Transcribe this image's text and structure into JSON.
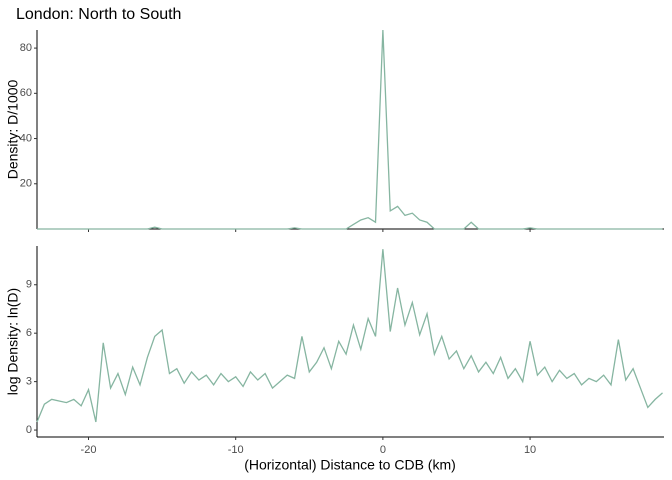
{
  "chart_data": [
    {
      "type": "line",
      "title": "London: North to South",
      "ylabel": "Density: D/1000",
      "x": [
        -23.5,
        -23,
        -22.5,
        -22,
        -21.5,
        -21,
        -20.5,
        -20,
        -19.5,
        -19,
        -18.5,
        -18,
        -17.5,
        -17,
        -16.5,
        -16,
        -15.5,
        -15,
        -14.5,
        -14,
        -13.5,
        -13,
        -12.5,
        -12,
        -11.5,
        -11,
        -10.5,
        -10,
        -9.5,
        -9,
        -8.5,
        -8,
        -7.5,
        -7,
        -6.5,
        -6,
        -5.5,
        -5,
        -4.5,
        -4,
        -3.5,
        -3,
        -2.5,
        -2,
        -1.5,
        -1,
        -0.5,
        0,
        0.5,
        1,
        1.5,
        2,
        2.5,
        3,
        3.5,
        4,
        4.5,
        5,
        5.5,
        6,
        6.5,
        7,
        7.5,
        8,
        8.5,
        9,
        9.5,
        10,
        10.5,
        11,
        11.5,
        12,
        12.5,
        13,
        13.5,
        14,
        14.5,
        15,
        15.5,
        16,
        16.5,
        17,
        17.5,
        18,
        18.5,
        19
      ],
      "series": [
        {
          "color": "#86b5a1",
          "values": [
            0,
            0,
            0,
            0,
            0,
            0,
            0,
            0,
            0,
            0,
            0,
            0,
            0,
            0,
            0,
            0,
            0.8,
            0,
            0,
            0,
            0,
            0,
            0,
            0,
            0,
            0,
            0,
            0,
            0,
            0,
            0,
            0,
            0,
            0,
            0,
            0.5,
            0,
            0,
            0,
            0,
            0,
            0,
            0,
            2,
            4,
            5,
            3,
            88,
            8,
            10,
            6,
            7,
            4,
            3,
            0,
            0,
            0,
            0,
            0,
            3,
            0,
            0,
            0,
            0,
            0,
            0,
            0,
            0.5,
            0,
            0,
            0,
            0,
            0,
            0,
            0,
            0,
            0,
            0,
            0,
            0,
            0,
            0,
            0,
            0,
            0,
            0
          ]
        }
      ],
      "xlim": [
        -23.5,
        19.1
      ],
      "ylim": [
        0,
        88
      ],
      "yticks": [
        20,
        40,
        60,
        80
      ]
    },
    {
      "type": "line",
      "ylabel": "log Density: ln(D)",
      "xlabel": "(Horizontal) Distance to CDB (km)",
      "x": [
        -23.5,
        -23,
        -22.5,
        -22,
        -21.5,
        -21,
        -20.5,
        -20,
        -19.5,
        -19,
        -18.5,
        -18,
        -17.5,
        -17,
        -16.5,
        -16,
        -15.5,
        -15,
        -14.5,
        -14,
        -13.5,
        -13,
        -12.5,
        -12,
        -11.5,
        -11,
        -10.5,
        -10,
        -9.5,
        -9,
        -8.5,
        -8,
        -7.5,
        -7,
        -6.5,
        -6,
        -5.5,
        -5,
        -4.5,
        -4,
        -3.5,
        -3,
        -2.5,
        -2,
        -1.5,
        -1,
        -0.5,
        0,
        0.5,
        1,
        1.5,
        2,
        2.5,
        3,
        3.5,
        4,
        4.5,
        5,
        5.5,
        6,
        6.5,
        7,
        7.5,
        8,
        8.5,
        9,
        9.5,
        10,
        10.5,
        11,
        11.5,
        12,
        12.5,
        13,
        13.5,
        14,
        14.5,
        15,
        15.5,
        16,
        16.5,
        17,
        17.5,
        18,
        18.5,
        19
      ],
      "series": [
        {
          "color": "#86b5a1",
          "values": [
            0.5,
            1.6,
            1.9,
            1.8,
            1.7,
            1.9,
            1.5,
            2.5,
            0.5,
            5.4,
            2.6,
            3.5,
            2.2,
            3.9,
            2.8,
            4.5,
            5.8,
            6.2,
            3.5,
            3.8,
            2.9,
            3.6,
            3.1,
            3.4,
            2.8,
            3.5,
            3.0,
            3.3,
            2.7,
            3.6,
            3.1,
            3.5,
            2.6,
            3.0,
            3.4,
            3.2,
            5.8,
            3.6,
            4.2,
            5.1,
            3.8,
            5.5,
            4.7,
            6.5,
            5.0,
            6.9,
            5.8,
            11.2,
            6.1,
            8.8,
            6.5,
            7.9,
            5.9,
            7.2,
            4.7,
            5.8,
            4.4,
            4.9,
            3.8,
            4.6,
            3.6,
            4.2,
            3.5,
            4.5,
            3.2,
            3.8,
            3.0,
            5.5,
            3.4,
            3.9,
            3.0,
            3.7,
            3.2,
            3.5,
            2.8,
            3.2,
            3.0,
            3.4,
            2.8,
            5.6,
            3.1,
            3.8,
            2.6,
            1.4,
            1.9,
            2.3
          ]
        }
      ],
      "xlim": [
        -23.5,
        19.1
      ],
      "ylim": [
        -0.43,
        11.4
      ],
      "yticks": [
        0,
        3,
        6,
        9
      ],
      "xticks": [
        -20,
        -10,
        0,
        10
      ]
    }
  ]
}
